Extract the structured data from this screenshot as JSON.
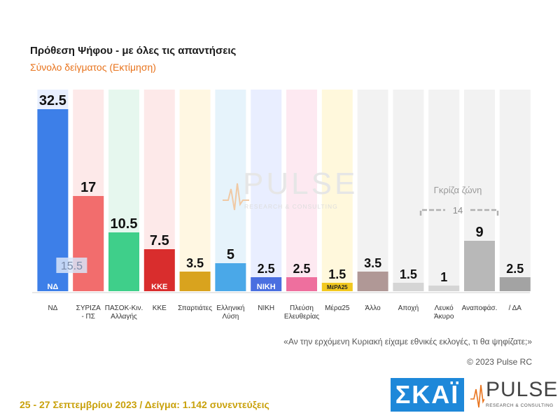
{
  "header": {
    "title": "Πρόθεση Ψήφου - με όλες τις απαντήσεις",
    "subtitle": "Σύνολο δείγματος   (Εκτίμηση)"
  },
  "watermark": {
    "word": "PULSE",
    "tagline": "RESEARCH & CONSULTING"
  },
  "gray_zone": {
    "label": "Γκρίζα ζώνη",
    "value": "14"
  },
  "question": "«Αν την ερχόμενη Κυριακή είχαμε εθνικές εκλογές, τι θα ψηφίζατε;»",
  "copyright": "© 2023 Pulse RC",
  "footer": "25 - 27 Σεπτεμβρίου 2023 / Δείγμα: 1.142 συνεντεύξεις",
  "logos": {
    "skai": "ΣΚΑΪ",
    "pulse_word": "PULSE",
    "pulse_tagline": "RESEARCH & CONSULTING"
  },
  "chart_data": {
    "type": "bar",
    "title": "Πρόθεση Ψήφου - με όλες τις απαντήσεις",
    "subtitle": "Σύνολο δείγματος   (Εκτίμηση)",
    "ylim": [
      0,
      40
    ],
    "grid": false,
    "categories": [
      [
        "ΝΔ"
      ],
      [
        "ΣΥΡΙΖΑ",
        "- ΠΣ"
      ],
      [
        "ΠΑΣΟΚ-Κιν.",
        "Αλλαγής"
      ],
      [
        "ΚΚΕ"
      ],
      [
        "Σπαρτιάτες"
      ],
      [
        "Ελληνική",
        "Λύση"
      ],
      [
        "ΝΙΚΗ"
      ],
      [
        "Πλεύση",
        "Ελευθερίας"
      ],
      [
        "Μέρα25"
      ],
      [
        "Άλλο"
      ],
      [
        "Αποχή"
      ],
      [
        "Λευκό",
        "Άκυρο"
      ],
      [
        "Αναποφάσ."
      ],
      [
        "/ ΔΑ"
      ]
    ],
    "values": [
      32.5,
      17,
      10.5,
      7.5,
      3.5,
      5,
      2.5,
      2.5,
      1.5,
      3.5,
      1.5,
      1,
      9,
      2.5
    ],
    "value_labels": [
      "32.5",
      "17",
      "10.5",
      "7.5",
      "3.5",
      "5",
      "2.5",
      "2.5",
      "1.5",
      "3.5",
      "1.5",
      "1",
      "9",
      "2.5"
    ],
    "annotations": [
      {
        "category_index": 0,
        "text": "15.5"
      }
    ],
    "colors": [
      "#3d7fe8",
      "#f26d6d",
      "#3fcf8a",
      "#d92d2d",
      "#d9a31e",
      "#4aa8e8",
      "#4a6fe0",
      "#ee6f9e",
      "#f2c81f",
      "#b09896",
      "#d5d5d5",
      "#d5d5d5",
      "#b8b8b8",
      "#a3a3a3"
    ],
    "bg_colors": [
      "#e8efff",
      "#fde9e9",
      "#e6f7ee",
      "#fde9e9",
      "#fff7e2",
      "#e6f3fb",
      "#e9eeff",
      "#fde9f1",
      "#fff8dc",
      "#f2f2f2",
      "#f2f2f2",
      "#f2f2f2",
      "#f2f2f2",
      "#f2f2f2"
    ],
    "logos": [
      "ΝΔ",
      "",
      "",
      "ΚΚΕ",
      "",
      "",
      "ΝΙΚΗ",
      "",
      "ΜέΡΑ25",
      "",
      "",
      "",
      "",
      ""
    ]
  }
}
